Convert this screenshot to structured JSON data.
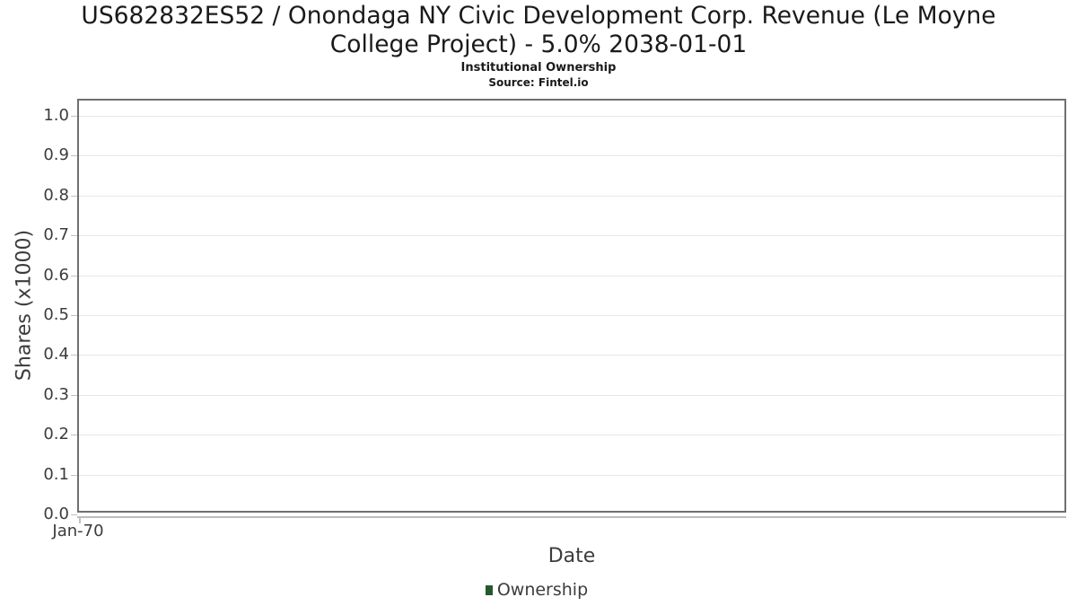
{
  "header": {
    "title": "US682832ES52 / Onondaga NY Civic Development Corp. Revenue (Le Moyne College Project) - 5.0% 2038-01-01",
    "subtitle": "Institutional Ownership",
    "source": "Source: Fintel.io"
  },
  "chart_data": {
    "type": "line",
    "title": "US682832ES52 / Onondaga NY Civic Development Corp. Revenue (Le Moyne College Project) - 5.0% 2038-01-01",
    "subtitle": "Institutional Ownership",
    "source_note": "Source: Fintel.io",
    "xlabel": "Date",
    "ylabel": "Shares (x1000)",
    "xticks": [
      "Jan-70"
    ],
    "yticks": [
      "1.0",
      "0.9",
      "0.8",
      "0.7",
      "0.6",
      "0.5",
      "0.4",
      "0.3",
      "0.2",
      "0.1",
      "0.0"
    ],
    "ylim": [
      0.0,
      1.05
    ],
    "grid": "horizontal-only",
    "legend": {
      "position": "bottom-center",
      "entries": [
        {
          "label": "Ownership",
          "color": "#26582e"
        }
      ]
    },
    "series": [
      {
        "name": "Ownership",
        "color": "#26582e",
        "x": [],
        "y": []
      }
    ],
    "plot_is_empty": true,
    "style_colors": {
      "plot_border": "#6f6f6f",
      "gridline": "#e7e7e7",
      "tick": "#c0c0c0",
      "axis_text": "#3c3c3c",
      "title_text": "#1a1a1a"
    }
  }
}
